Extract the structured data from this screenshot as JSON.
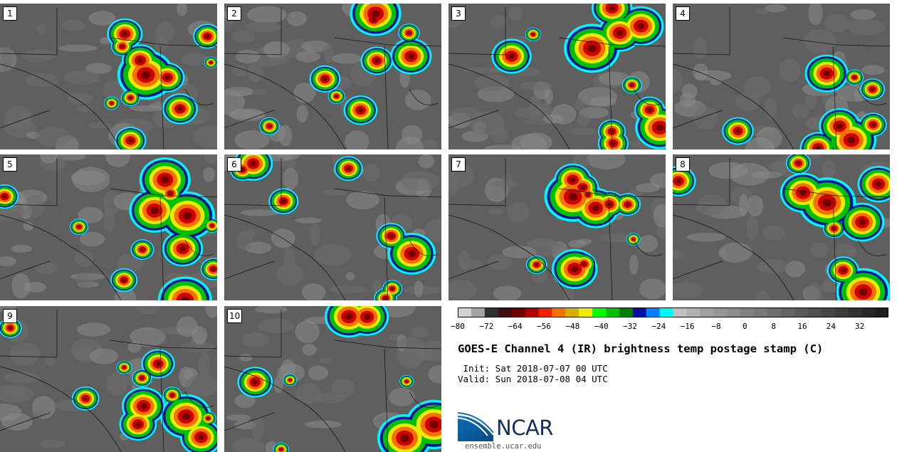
{
  "panels": [
    {
      "label": "1",
      "seed": 11
    },
    {
      "label": "2",
      "seed": 23
    },
    {
      "label": "3",
      "seed": 37
    },
    {
      "label": "4",
      "seed": 41
    },
    {
      "label": "5",
      "seed": 53
    },
    {
      "label": "6",
      "seed": 67
    },
    {
      "label": "7",
      "seed": 71
    },
    {
      "label": "8",
      "seed": 83
    },
    {
      "label": "9",
      "seed": 97
    },
    {
      "label": "10",
      "seed": 101
    }
  ],
  "colorbar": {
    "colors": [
      "#d3d3d3",
      "#a3a3a3",
      "#303030",
      "#401010",
      "#700000",
      "#b00000",
      "#ee2000",
      "#f47000",
      "#d4b000",
      "#ecec00",
      "#00ff00",
      "#00c000",
      "#008000",
      "#0010a0",
      "#0080ff",
      "#00f8f8",
      "#c0c0c0",
      "#b0b0b0",
      "#a0a0a0",
      "#969696",
      "#8c8c8c",
      "#828282",
      "#787878",
      "#6e6e6e",
      "#646464",
      "#5a5a5a",
      "#505050",
      "#464646",
      "#3c3c3c",
      "#323232",
      "#282828",
      "#1e1e1e"
    ],
    "ticks": [
      "−80",
      "−72",
      "−64",
      "−56",
      "−48",
      "−40",
      "−32",
      "−24",
      "−16",
      "−8",
      "0",
      "8",
      "16",
      "24",
      "32"
    ]
  },
  "title": "GOES-E Channel 4 (IR) brightness temp postage stamp (C)",
  "init_text": " Init: Sat 2018-07-07 00 UTC",
  "valid_text": "Valid: Sun 2018-07-08 04 UTC",
  "logo": {
    "name": "NCAR",
    "url": "ensemble.ucar.edu",
    "brand_color": "#13305a",
    "accent_color": "#0a6fb5"
  }
}
